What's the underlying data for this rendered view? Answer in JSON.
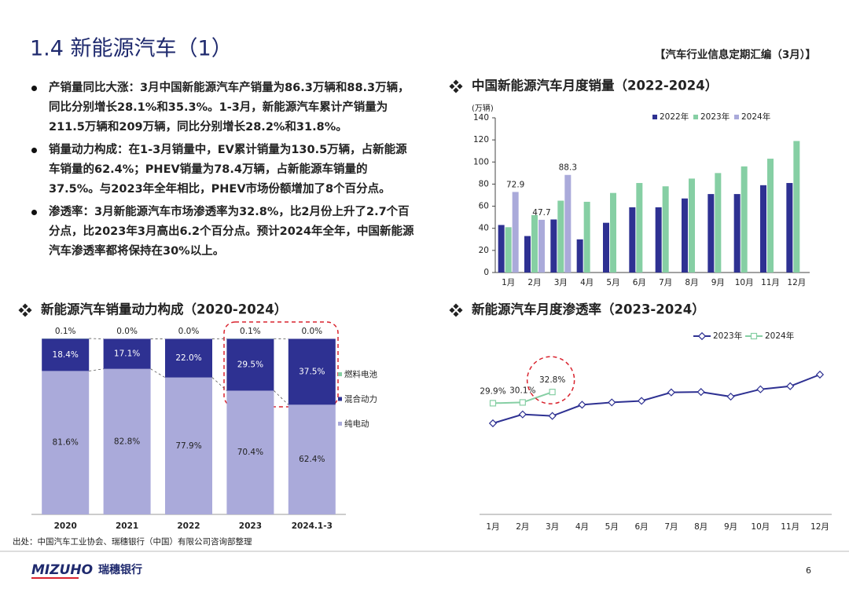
{
  "header": {
    "title": "1.4 新能源汽车（1）",
    "subtitle": "【汽车行业信息定期汇编（3月）】"
  },
  "bullets": [
    "产销量同比大涨：3月中国新能源汽车产销量为86.3万辆和88.3万辆，同比分别增长28.1%和35.3%。1-3月，新能源汽车累计产销量为211.5万辆和209万辆，同比分别增长28.2%和31.8%。",
    "销量动力构成：在1-3月销量中，EV累计销量为130.5万辆，占新能源车销量的62.4%；PHEV销量为78.4万辆，占新能源车销量的37.5%。与2023年全年相比，PHEV市场份额增加了8个百分点。",
    "渗透率：3月新能源汽车市场渗透率为32.8%，比2月份上升了2.7个百分点，比2023年3月高出6.2个百分点。预计2024年全年，中国新能源汽车渗透率都将保持在30%以上。"
  ],
  "chart_data": [
    {
      "type": "bar",
      "title": "中国新能源汽车月度销量（2022-2024）",
      "y_label": "(万辆)",
      "categories": [
        "1月",
        "2月",
        "3月",
        "4月",
        "5月",
        "6月",
        "7月",
        "8月",
        "9月",
        "10月",
        "11月",
        "12月"
      ],
      "series": [
        {
          "name": "2022年",
          "color": "#2e3192",
          "values": [
            43,
            33,
            48,
            30,
            45,
            59,
            59,
            67,
            71,
            71,
            79,
            81
          ]
        },
        {
          "name": "2023年",
          "color": "#86cfa4",
          "values": [
            41,
            52,
            65,
            64,
            72,
            81,
            78,
            85,
            90,
            96,
            103,
            119
          ]
        },
        {
          "name": "2024年",
          "color": "#aaaada",
          "labels": true,
          "values": [
            72.9,
            47.7,
            88.3,
            null,
            null,
            null,
            null,
            null,
            null,
            null,
            null,
            null
          ]
        }
      ],
      "ylim": [
        0,
        140
      ],
      "yticks": [
        0,
        20,
        40,
        60,
        80,
        100,
        120,
        140
      ],
      "legend": "top"
    },
    {
      "type": "stacked_bar",
      "title": "新能源汽车销量动力构成（2020-2024）",
      "categories": [
        "2020",
        "2021",
        "2022",
        "2023",
        "2024.1-3"
      ],
      "series": [
        {
          "name": "纯电动",
          "color": "#aaaada",
          "values": [
            81.6,
            82.8,
            77.9,
            70.4,
            62.4
          ],
          "value_labels": [
            "81.6%",
            "82.8%",
            "77.9%",
            "70.4%",
            "62.4%"
          ]
        },
        {
          "name": "混合动力",
          "color": "#2e3192",
          "values": [
            18.4,
            17.1,
            22.0,
            29.5,
            37.5
          ],
          "value_labels": [
            "18.4%",
            "17.1%",
            "22.0%",
            "29.5%",
            "37.5%"
          ]
        },
        {
          "name": "燃料电池",
          "color": "#86cfa4",
          "values": [
            0.1,
            0.0,
            0.0,
            0.1,
            0.0
          ],
          "value_labels": [
            "0.1%",
            "0.0%",
            "0.0%",
            "0.1%",
            "0.0%"
          ]
        }
      ],
      "legend": "right"
    },
    {
      "type": "line",
      "title": "新能源汽车月度渗透率（2023-2024）",
      "categories": [
        "1月",
        "2月",
        "3月",
        "4月",
        "5月",
        "6月",
        "7月",
        "8月",
        "9月",
        "10月",
        "11月",
        "12月"
      ],
      "series": [
        {
          "name": "2023年",
          "color": "#2e3192",
          "marker": "diamond",
          "values": [
            24.7,
            27.0,
            26.6,
            29.5,
            30.1,
            30.5,
            32.7,
            32.8,
            31.6,
            33.5,
            34.3,
            37.3
          ]
        },
        {
          "name": "2024年",
          "color": "#86cfa4",
          "marker": "square",
          "values": [
            29.9,
            30.1,
            32.8,
            null,
            null,
            null,
            null,
            null,
            null,
            null,
            null,
            null
          ],
          "value_labels": [
            "29.9%",
            "30.1%",
            "32.8%",
            null,
            null,
            null,
            null,
            null,
            null,
            null,
            null,
            null
          ]
        }
      ],
      "legend": "top"
    }
  ],
  "footer": {
    "source": "出处：中国汽车工业协会、瑞穗银行（中国）有限公司咨询部整理",
    "logo": "MIZUHO",
    "bank": "瑞穗银行",
    "page": "6"
  }
}
